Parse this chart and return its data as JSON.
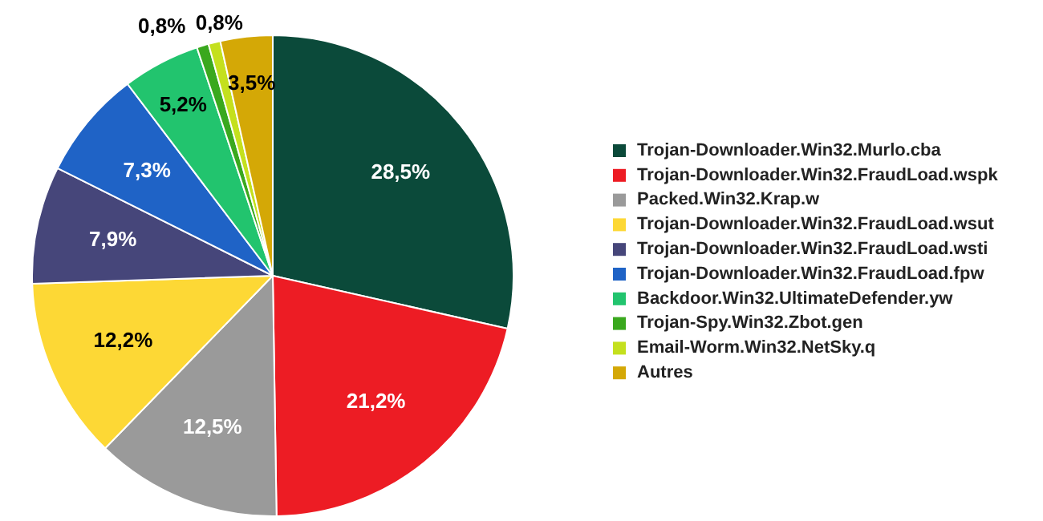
{
  "chart_data": {
    "type": "pie",
    "categories": [
      "Trojan-Downloader.Win32.Murlo.cba",
      "Trojan-Downloader.Win32.FraudLoad.wspk",
      "Packed.Win32.Krap.w",
      "Trojan-Downloader.Win32.FraudLoad.wsut",
      "Trojan-Downloader.Win32.FraudLoad.wsti",
      "Trojan-Downloader.Win32.FraudLoad.fpw",
      "Backdoor.Win32.UltimateDefender.yw",
      "Trojan-Spy.Win32.Zbot.gen",
      "Email-Worm.Win32.NetSky.q",
      "Autres"
    ],
    "values": [
      28.5,
      21.2,
      12.5,
      12.2,
      7.9,
      7.3,
      5.2,
      0.8,
      0.8,
      3.5
    ],
    "value_labels": [
      "28,5%",
      "21,2%",
      "12,5%",
      "12,2%",
      "7,9%",
      "7,3%",
      "5,2%",
      "0,8%",
      "0,8%",
      "3,5%"
    ],
    "colors": [
      "#0b4a3a",
      "#ed1c24",
      "#9a9a9a",
      "#fdd835",
      "#46467a",
      "#1f63c6",
      "#22c46e",
      "#3aa81e",
      "#c4e01e",
      "#d4a806"
    ],
    "legend": "right"
  }
}
